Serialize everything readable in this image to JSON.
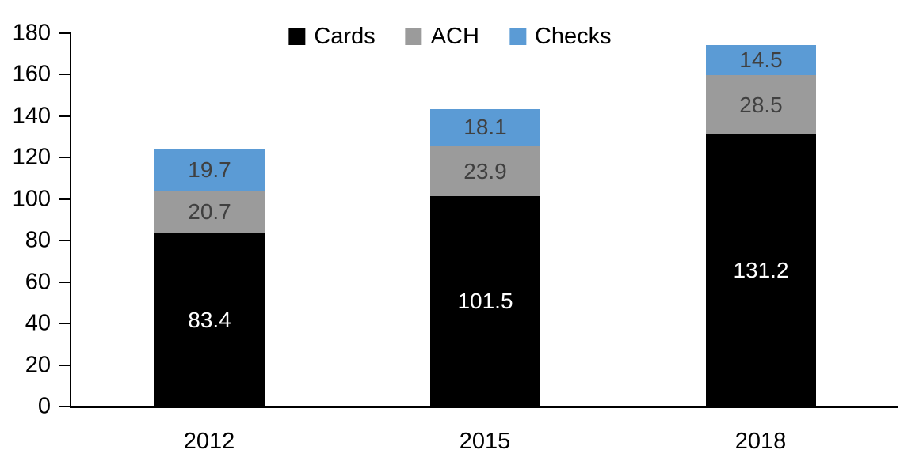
{
  "chart_data": {
    "type": "bar",
    "stacked": true,
    "title": "",
    "categories": [
      "2012",
      "2015",
      "2018"
    ],
    "series": [
      {
        "name": "Cards",
        "color": "#000000",
        "label_color": "#FFFFFF",
        "values": [
          83.4,
          101.5,
          131.2
        ]
      },
      {
        "name": "ACH",
        "color": "#9B9B9B",
        "label_color": "#404040",
        "values": [
          20.7,
          23.9,
          28.5
        ]
      },
      {
        "name": "Checks",
        "color": "#5B9BD5",
        "label_color": "#404040",
        "values": [
          19.7,
          18.1,
          14.5
        ]
      }
    ],
    "yticks": [
      0,
      20,
      40,
      60,
      80,
      100,
      120,
      140,
      160,
      180
    ],
    "ylim": [
      0,
      180
    ],
    "xlabel": "",
    "ylabel": "",
    "legend_position": "top-center",
    "grid": false,
    "data_labels": true,
    "colors": {
      "axis": "#000000",
      "background": "#FFFFFF"
    }
  }
}
